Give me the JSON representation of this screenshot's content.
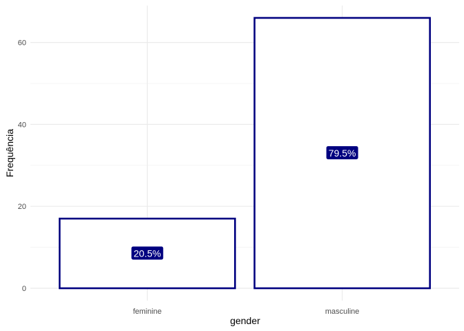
{
  "chart_data": {
    "type": "bar",
    "categories": [
      "feminine",
      "masculine"
    ],
    "values": [
      17,
      66
    ],
    "data_labels": [
      "20.5%",
      "79.5%"
    ],
    "xlabel": "gender",
    "ylabel": "Frequência",
    "ylim": [
      0,
      66
    ],
    "yticks": [
      0,
      20,
      40,
      60
    ],
    "grid": true,
    "legend": "none",
    "colors": {
      "bar_outline": "#000080",
      "bar_fill": "#ffffff",
      "label_background": "#000080",
      "label_text": "#ffffff",
      "grid_major": "#ebebeb",
      "grid_minor": "#f5f5f5"
    }
  }
}
